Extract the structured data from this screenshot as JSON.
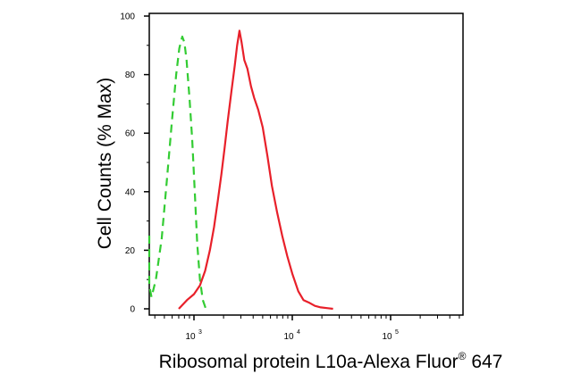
{
  "chart_data": {
    "type": "line",
    "xlabel": "Ribosomal protein L10a-Alexa Fluor",
    "xlabel_sup": "®",
    "xlabel_suffix": " 647",
    "ylabel": "Cell Counts (% Max)",
    "x_scale": "log",
    "xlim": [
      300,
      500000
    ],
    "ylim": [
      0,
      100
    ],
    "y_ticks": [
      0,
      20,
      40,
      60,
      80,
      100
    ],
    "x_tick_labels": [
      {
        "base": "10",
        "exp": "3",
        "value": 1000
      },
      {
        "base": "10",
        "exp": "4",
        "value": 10000
      },
      {
        "base": "10",
        "exp": "5",
        "value": 100000
      }
    ],
    "grid": false,
    "series": [
      {
        "color": "#33cc33",
        "style": "dashed",
        "x": [
          300,
          330,
          370,
          410,
          470,
          530,
          600,
          660,
          710,
          760,
          800,
          840,
          900,
          960,
          1020,
          1080,
          1150,
          1230,
          1320
        ],
        "y": [
          25,
          8,
          4,
          10,
          24,
          44,
          65,
          80,
          89,
          93,
          91,
          85,
          72,
          58,
          40,
          22,
          10,
          3,
          0
        ]
      },
      {
        "color": "#e8202a",
        "style": "solid",
        "x": [
          700,
          850,
          1000,
          1150,
          1300,
          1450,
          1600,
          1750,
          1900,
          2050,
          2200,
          2400,
          2600,
          2750,
          2900,
          3050,
          3250,
          3500,
          3800,
          4100,
          4500,
          5000,
          5600,
          6200,
          7000,
          7900,
          8900,
          10000,
          11500,
          13000,
          15000,
          17000,
          19500,
          23000,
          26000
        ],
        "y": [
          0,
          3,
          5,
          8,
          13,
          20,
          28,
          37,
          46,
          55,
          64,
          74,
          83,
          90,
          95,
          91,
          85,
          82,
          76,
          72,
          68,
          62,
          52,
          42,
          33,
          25,
          18,
          12,
          6,
          3,
          2,
          1,
          0.5,
          0.2,
          0
        ]
      }
    ]
  }
}
